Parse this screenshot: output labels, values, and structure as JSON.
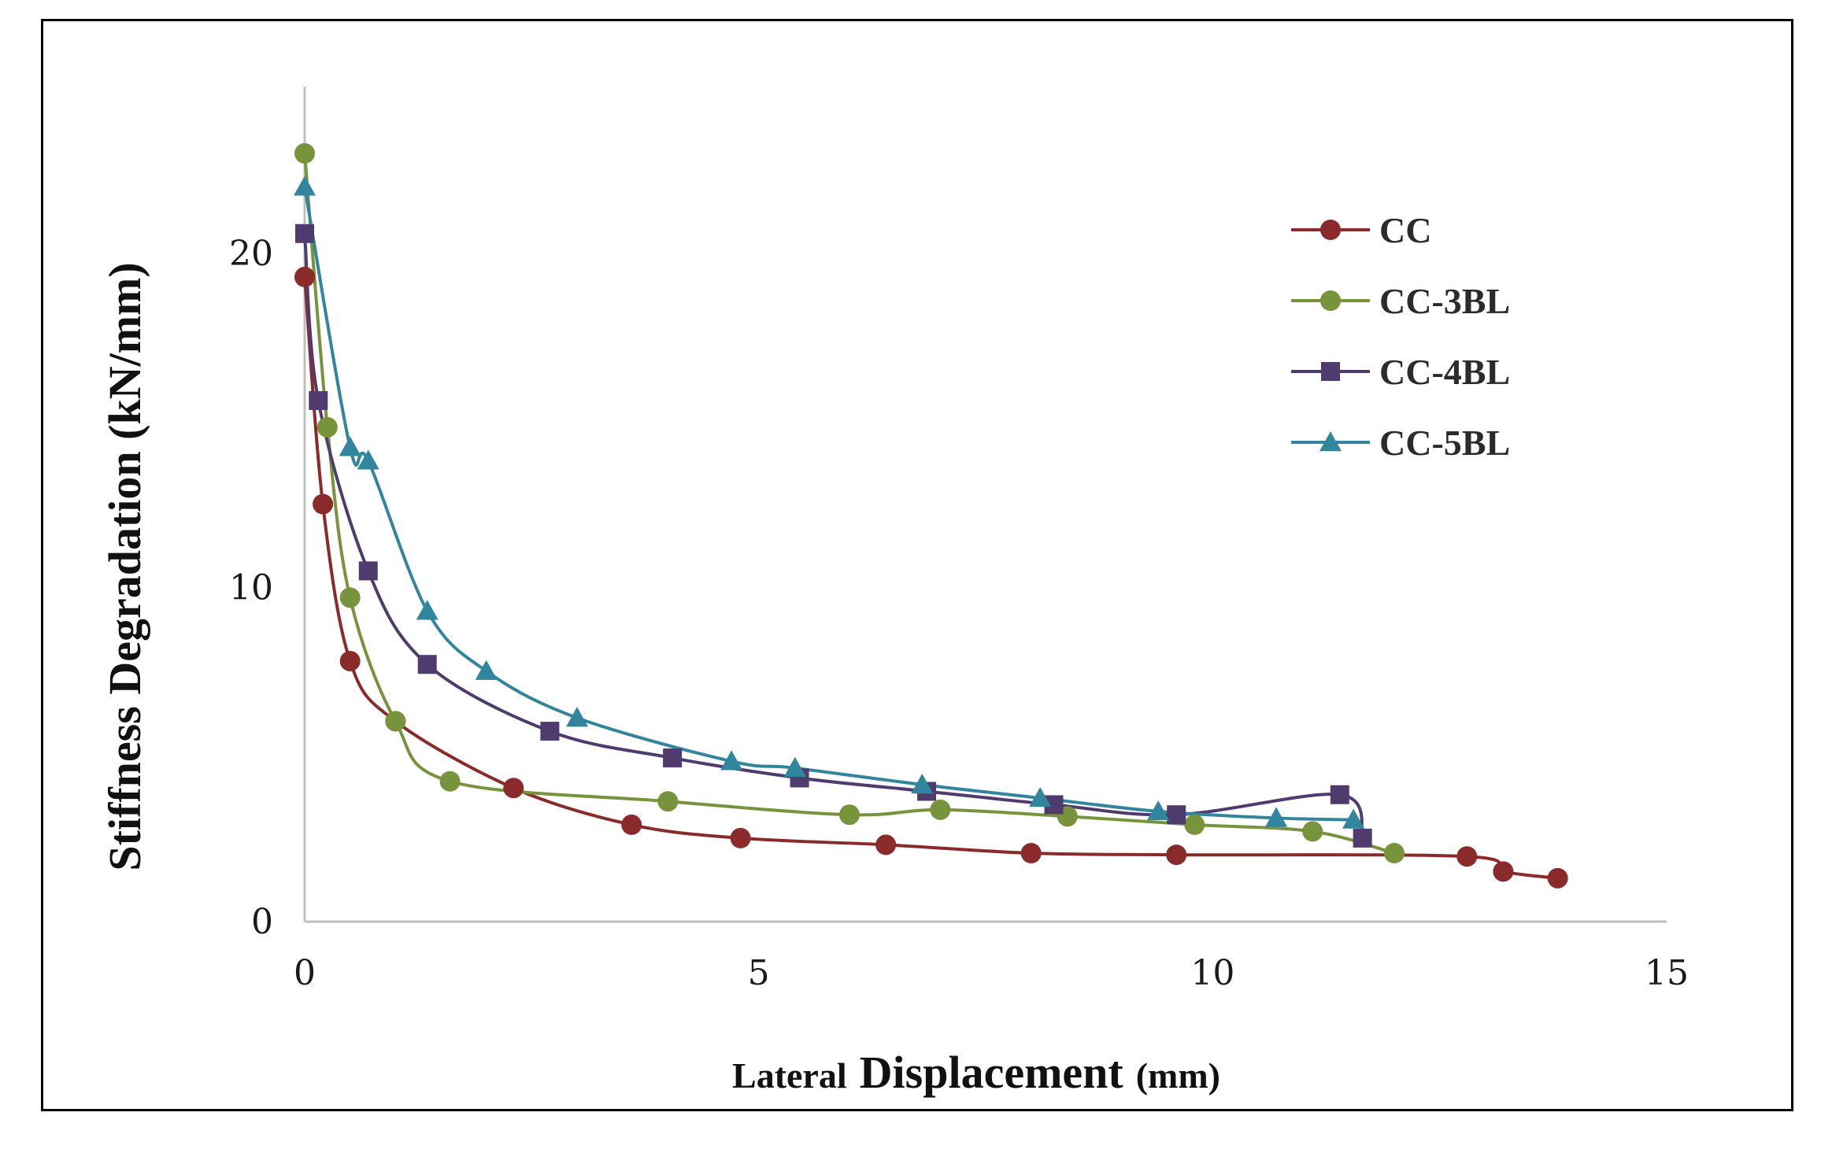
{
  "chart_data": {
    "type": "line",
    "title": "",
    "xlabel": "Lateral Displacement (mm)",
    "xlabel_parts": [
      "Lateral",
      "Displacement",
      "(mm)"
    ],
    "ylabel": "Stiffness Degradation (kN/mm)",
    "xlim": [
      0,
      15
    ],
    "ylim": [
      0,
      25
    ],
    "xticks": [
      "0",
      "5",
      "10",
      "15"
    ],
    "yticks": [
      "0",
      "10",
      "20"
    ],
    "grid": false,
    "legend_position": "top-right",
    "series": [
      {
        "name": "CC",
        "color": "#8B2A2A",
        "marker": "circle",
        "x": [
          0,
          0.2,
          0.5,
          1.0,
          2.3,
          3.6,
          4.8,
          6.4,
          8.0,
          9.6,
          12.8,
          13.2,
          13.8
        ],
        "y": [
          19.3,
          12.5,
          7.8,
          6.0,
          4.0,
          2.9,
          2.5,
          2.3,
          2.05,
          2.0,
          1.95,
          1.5,
          1.3
        ]
      },
      {
        "name": "CC-3BL",
        "color": "#77933C",
        "marker": "circle",
        "x": [
          0,
          0.25,
          0.5,
          1.0,
          1.6,
          4.0,
          6.0,
          7.0,
          8.4,
          9.8,
          11.1,
          12.0
        ],
        "y": [
          23.0,
          14.8,
          9.7,
          6.0,
          4.2,
          3.6,
          3.2,
          3.35,
          3.15,
          2.9,
          2.7,
          2.05
        ]
      },
      {
        "name": "CC-4BL",
        "color": "#4F3B6E",
        "marker": "square",
        "x": [
          0,
          0.15,
          0.7,
          1.35,
          2.7,
          4.05,
          5.45,
          6.85,
          8.25,
          9.6,
          11.4,
          11.65
        ],
        "y": [
          20.6,
          15.6,
          10.5,
          7.7,
          5.7,
          4.9,
          4.3,
          3.9,
          3.5,
          3.2,
          3.8,
          2.5
        ]
      },
      {
        "name": "CC-5BL",
        "color": "#31859C",
        "marker": "triangle",
        "x": [
          0,
          0.5,
          0.7,
          1.35,
          2.0,
          3.0,
          4.7,
          5.4,
          6.8,
          8.1,
          9.4,
          10.7,
          11.55
        ],
        "y": [
          22.0,
          14.2,
          13.8,
          9.3,
          7.5,
          6.1,
          4.8,
          4.6,
          4.1,
          3.7,
          3.3,
          3.1,
          3.05
        ]
      }
    ]
  }
}
